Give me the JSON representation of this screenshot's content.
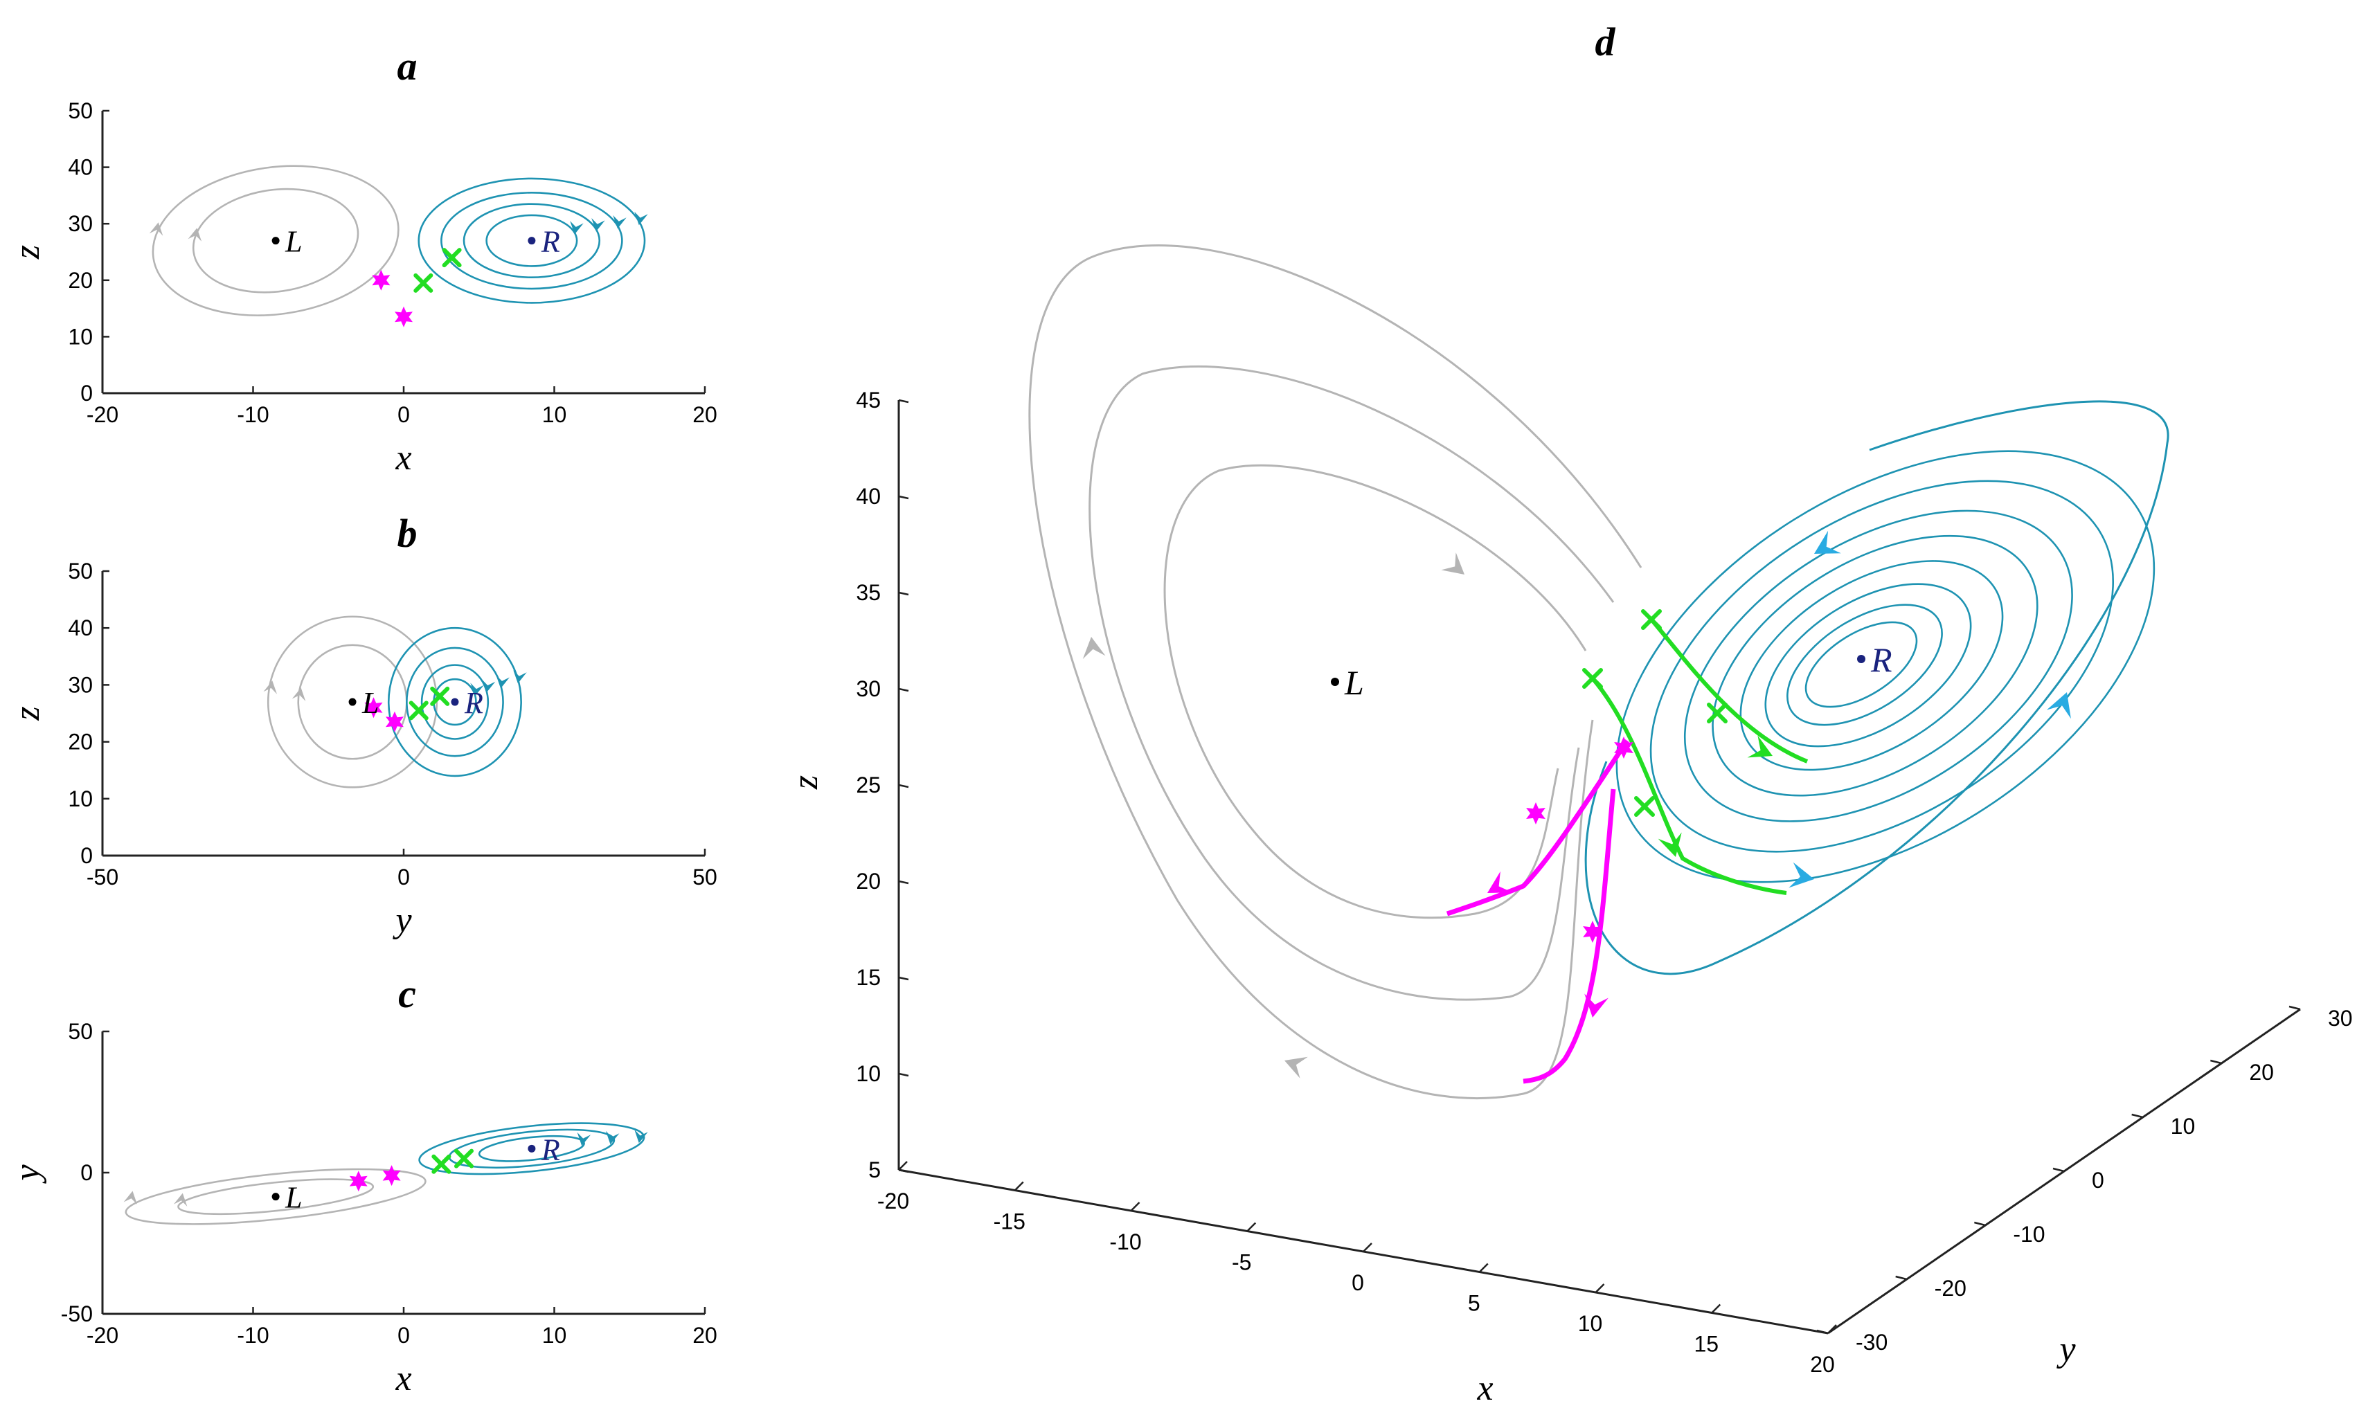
{
  "figure": {
    "colors": {
      "left_orbit": "#b4b4b4",
      "right_orbit": "#1e93b2",
      "arrow_right": "#29abe2",
      "magenta": "#ff00ff",
      "green": "#22dd22",
      "right_point": "#1a237e",
      "left_point": "#000000"
    }
  },
  "chart_data": [
    {
      "panel": "a",
      "title": "a",
      "type": "line",
      "projection": "x-z",
      "xlabel": "x",
      "ylabel": "z",
      "xlim": [
        -20,
        20
      ],
      "ylim": [
        0,
        50
      ],
      "xticks": [
        "-20",
        "-10",
        "0",
        "10",
        "20"
      ],
      "yticks": [
        "0",
        "10",
        "20",
        "30",
        "40",
        "50"
      ],
      "equilibria": [
        {
          "name": "L",
          "x": -8.5,
          "y": 27
        },
        {
          "name": "R",
          "x": 8.5,
          "y": 27
        }
      ],
      "series": [
        {
          "name": "left-outer",
          "color": "left_orbit",
          "cx": -8.5,
          "cy": 27,
          "rx": 8.2,
          "ry": 13,
          "rot": -8
        },
        {
          "name": "left-inner",
          "color": "left_orbit",
          "cx": -8.5,
          "cy": 27,
          "rx": 5.5,
          "ry": 9,
          "rot": -8
        },
        {
          "name": "right-1",
          "color": "right_orbit",
          "cx": 8.5,
          "cy": 27,
          "rx": 7.5,
          "ry": 11,
          "rot": 0
        },
        {
          "name": "right-2",
          "color": "right_orbit",
          "cx": 8.5,
          "cy": 27,
          "rx": 6,
          "ry": 8.5,
          "rot": 0
        },
        {
          "name": "right-3",
          "color": "right_orbit",
          "cx": 8.5,
          "cy": 27,
          "rx": 4.5,
          "ry": 6.5,
          "rot": 0
        },
        {
          "name": "right-4",
          "color": "right_orbit",
          "cx": 8.5,
          "cy": 27,
          "rx": 3,
          "ry": 4.5,
          "rot": 0
        }
      ],
      "markers": [
        {
          "color": "magenta",
          "x": -1.5,
          "y": 20
        },
        {
          "color": "magenta",
          "x": 0,
          "y": 13.5
        },
        {
          "color": "green",
          "x": 1.3,
          "y": 19.5
        },
        {
          "color": "green",
          "x": 3.2,
          "y": 24
        }
      ]
    },
    {
      "panel": "b",
      "title": "b",
      "type": "line",
      "projection": "y-z",
      "xlabel": "y",
      "ylabel": "z",
      "xlim": [
        -50,
        50
      ],
      "ylim": [
        0,
        50
      ],
      "xticks": [
        "-50",
        "0",
        "50"
      ],
      "yticks": [
        "0",
        "10",
        "20",
        "30",
        "40",
        "50"
      ],
      "equilibria": [
        {
          "name": "L",
          "x": -8.5,
          "y": 27
        },
        {
          "name": "R",
          "x": 8.5,
          "y": 27
        }
      ],
      "series": [
        {
          "name": "left-outer",
          "color": "left_orbit",
          "cx": -8.5,
          "cy": 27,
          "rx": 14,
          "ry": 15,
          "rot": 0
        },
        {
          "name": "left-inner",
          "color": "left_orbit",
          "cx": -8.5,
          "cy": 27,
          "rx": 9,
          "ry": 10,
          "rot": 0
        },
        {
          "name": "right-1",
          "color": "right_orbit",
          "cx": 8.5,
          "cy": 27,
          "rx": 11,
          "ry": 13,
          "rot": 0
        },
        {
          "name": "right-2",
          "color": "right_orbit",
          "cx": 8.5,
          "cy": 27,
          "rx": 8,
          "ry": 9.5,
          "rot": 0
        },
        {
          "name": "right-3",
          "color": "right_orbit",
          "cx": 8.5,
          "cy": 27,
          "rx": 5.5,
          "ry": 6.5,
          "rot": 0
        },
        {
          "name": "right-4",
          "color": "right_orbit",
          "cx": 8.5,
          "cy": 27,
          "rx": 3.5,
          "ry": 4,
          "rot": 0
        }
      ],
      "markers": [
        {
          "color": "magenta",
          "x": -5,
          "y": 26
        },
        {
          "color": "magenta",
          "x": -1.5,
          "y": 23.5
        },
        {
          "color": "green",
          "x": 2.5,
          "y": 25.5
        },
        {
          "color": "green",
          "x": 6,
          "y": 28
        }
      ]
    },
    {
      "panel": "c",
      "title": "c",
      "type": "line",
      "projection": "x-y",
      "xlabel": "x",
      "ylabel": "y",
      "xlim": [
        -20,
        20
      ],
      "ylim": [
        -50,
        50
      ],
      "xticks": [
        "-20",
        "-10",
        "0",
        "10",
        "20"
      ],
      "yticks": [
        "-50",
        "0",
        "50"
      ],
      "equilibria": [
        {
          "name": "L",
          "x": -8.5,
          "y": -8.5
        },
        {
          "name": "R",
          "x": 8.5,
          "y": 8.5
        }
      ],
      "series": [
        {
          "name": "left-outer",
          "color": "left_orbit",
          "cx": -8.5,
          "cy": -8.5,
          "rx": 10,
          "ry": 8,
          "rot": -6
        },
        {
          "name": "left-inner",
          "color": "left_orbit",
          "cx": -8.5,
          "cy": -8.5,
          "rx": 6.5,
          "ry": 5,
          "rot": -6
        },
        {
          "name": "right-1",
          "color": "right_orbit",
          "cx": 8.5,
          "cy": 8.5,
          "rx": 7.5,
          "ry": 8,
          "rot": -6
        },
        {
          "name": "right-2",
          "color": "right_orbit",
          "cx": 8.5,
          "cy": 8.5,
          "rx": 5.5,
          "ry": 6,
          "rot": -6
        },
        {
          "name": "right-3",
          "color": "right_orbit",
          "cx": 8.5,
          "cy": 8.5,
          "rx": 3.5,
          "ry": 4,
          "rot": -6
        }
      ],
      "markers": [
        {
          "color": "magenta",
          "x": -3,
          "y": -3
        },
        {
          "color": "magenta",
          "x": -0.8,
          "y": -1
        },
        {
          "color": "green",
          "x": 2.5,
          "y": 3
        },
        {
          "color": "green",
          "x": 4,
          "y": 5
        }
      ]
    },
    {
      "panel": "d",
      "title": "d",
      "type": "line",
      "projection": "3d",
      "xlabel": "x",
      "ylabel": "y",
      "zlabel": "z",
      "xlim": [
        -20,
        20
      ],
      "ylim": [
        -30,
        30
      ],
      "zlim": [
        5,
        45
      ],
      "xticks": [
        "-20",
        "-15",
        "-10",
        "-5",
        "0",
        "5",
        "10",
        "15",
        "20"
      ],
      "yticks": [
        "-30",
        "-20",
        "-10",
        "0",
        "10",
        "20",
        "30"
      ],
      "zticks": [
        "5",
        "10",
        "15",
        "20",
        "25",
        "30",
        "35",
        "40",
        "45"
      ],
      "equilibria": [
        {
          "name": "L",
          "x": -8.5,
          "y": -8.5,
          "z": 27
        },
        {
          "name": "R",
          "x": 8.5,
          "y": 8.5,
          "z": 27
        }
      ],
      "markers": [
        {
          "color": "green",
          "x": 1.5,
          "y": 4,
          "z": 33
        },
        {
          "color": "green",
          "x": -1,
          "y": 0,
          "z": 30.5
        },
        {
          "color": "magenta",
          "x": 0,
          "y": 0,
          "z": 27
        },
        {
          "color": "magenta",
          "x": -2.5,
          "y": -3,
          "z": 24
        },
        {
          "color": "magenta",
          "x": -1,
          "y": -2,
          "z": 17
        },
        {
          "color": "green",
          "x": 3,
          "y": 5,
          "z": 27
        },
        {
          "color": "green",
          "x": 1.5,
          "y": 2,
          "z": 24
        }
      ]
    }
  ]
}
